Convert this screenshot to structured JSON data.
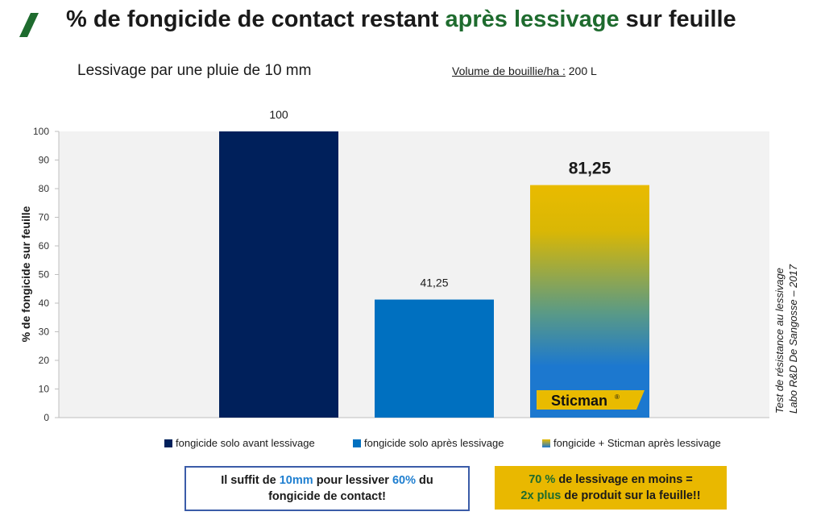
{
  "header": {
    "title_part1": "% de fongicide de contact restant",
    "title_highlight": "après lessivage",
    "title_part2": "sur feuille",
    "subtitle": "Lessivage par une pluie de 10 mm",
    "volume_label": "Volume de bouillie/ha :",
    "volume_value": "200 L",
    "side_note_line1": "Test de résistance au lessivage",
    "side_note_line2": "Labo R&D De Sangosse – 2017"
  },
  "chart_data": {
    "type": "bar",
    "title": "",
    "ylabel": "% de fongicide sur feuille",
    "xlabel": "",
    "ylim": [
      0,
      100
    ],
    "yticks": [
      0,
      10,
      20,
      30,
      40,
      50,
      60,
      70,
      80,
      90,
      100
    ],
    "grid": false,
    "legend_position": "bottom",
    "categories": [
      "fongicide solo avant lessivage",
      "fongicide solo après lessivage",
      "fongicide + Sticman après lessivage"
    ],
    "values": [
      100,
      41.25,
      81.25
    ],
    "value_labels": [
      "100",
      "41,25",
      "81,25"
    ],
    "colors": [
      "#00205b",
      "#0070c0",
      "#e9bb00"
    ],
    "gradient_bottom": "#1c78cf",
    "brand_badge": "Sticman",
    "brand_mark": "®"
  },
  "messages": {
    "left_p1": "Il suffit de",
    "left_h1": "10mm",
    "left_p2": "pour lessiver",
    "left_h2": "60%",
    "left_p3": "du",
    "left_p4": "fongicide de contact!",
    "right_h1": "70 %",
    "right_p1": "de lessivage en moins =",
    "right_h2": "2x plus",
    "right_p2": "de produit sur la feuille!!"
  },
  "colors": {
    "title_accent": "#1e6b2e",
    "plot_bg": "#f2f2f2",
    "left_box_border": "#3b5ca8",
    "right_box_bg": "#e9b800"
  }
}
